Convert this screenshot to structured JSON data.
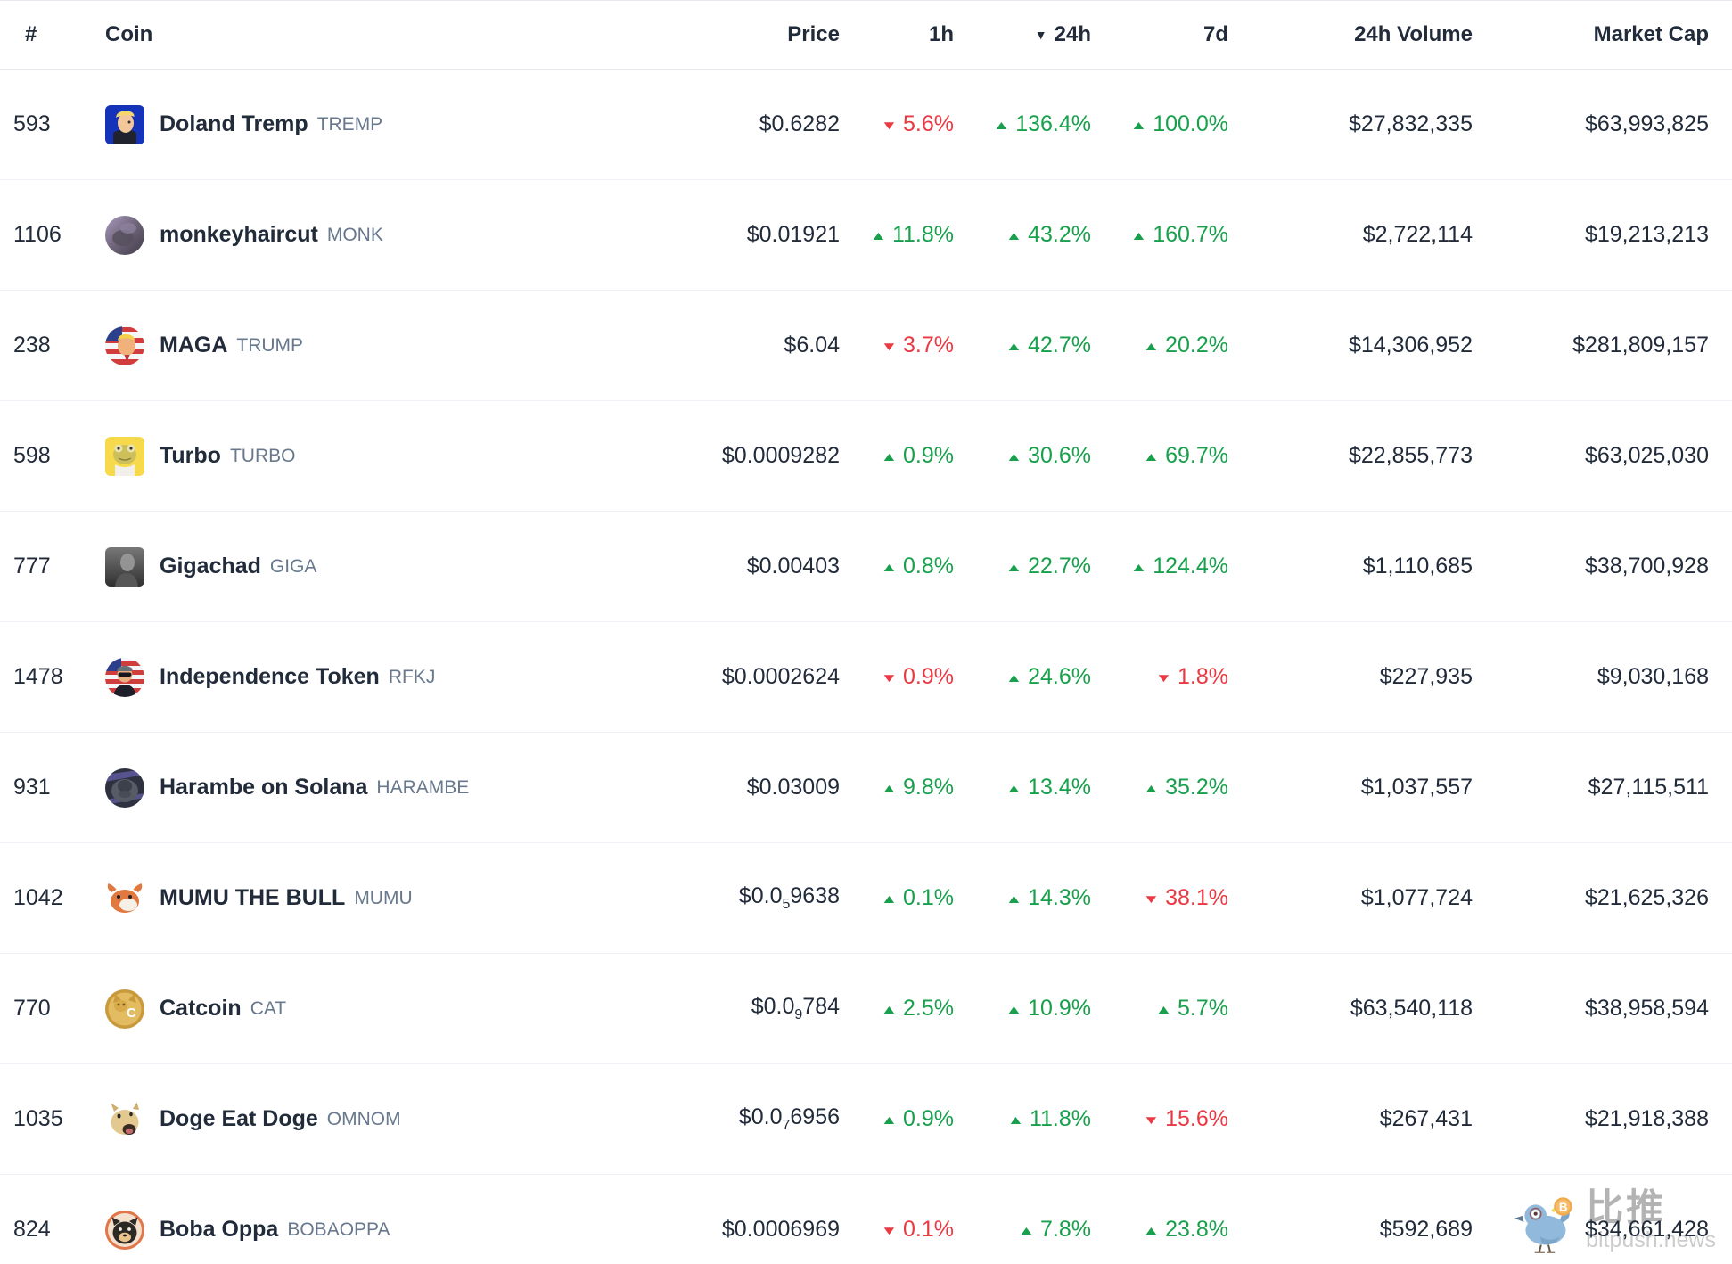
{
  "table": {
    "columns": {
      "rank": "#",
      "coin": "Coin",
      "price": "Price",
      "h1": "1h",
      "h24": "24h",
      "d7": "7d",
      "volume": "24h Volume",
      "market_cap": "Market Cap"
    },
    "sort": {
      "column": "24h",
      "direction": "desc",
      "indicator": "▼"
    }
  },
  "colors": {
    "positive": "#18a04c",
    "negative": "#ea3943",
    "text": "#212b3a",
    "ticker": "#68788d"
  },
  "coins": [
    {
      "rank": "593",
      "name": "Doland Tremp",
      "symbol": "TREMP",
      "icon": "doland-tremp-avatar",
      "price": "$0.6282",
      "change_1h": {
        "dir": "down",
        "value": "5.6%"
      },
      "change_24h": {
        "dir": "up",
        "value": "136.4%"
      },
      "change_7d": {
        "dir": "up",
        "value": "100.0%"
      },
      "volume_24h": "$27,832,335",
      "market_cap": "$63,993,825"
    },
    {
      "rank": "1106",
      "name": "monkeyhaircut",
      "symbol": "MONK",
      "icon": "monkeyhaircut-avatar",
      "price": "$0.01921",
      "change_1h": {
        "dir": "up",
        "value": "11.8%"
      },
      "change_24h": {
        "dir": "up",
        "value": "43.2%"
      },
      "change_7d": {
        "dir": "up",
        "value": "160.7%"
      },
      "volume_24h": "$2,722,114",
      "market_cap": "$19,213,213"
    },
    {
      "rank": "238",
      "name": "MAGA",
      "symbol": "TRUMP",
      "icon": "maga-avatar",
      "price": "$6.04",
      "change_1h": {
        "dir": "down",
        "value": "3.7%"
      },
      "change_24h": {
        "dir": "up",
        "value": "42.7%"
      },
      "change_7d": {
        "dir": "up",
        "value": "20.2%"
      },
      "volume_24h": "$14,306,952",
      "market_cap": "$281,809,157"
    },
    {
      "rank": "598",
      "name": "Turbo",
      "symbol": "TURBO",
      "icon": "turbo-avatar",
      "price": "$0.0009282",
      "change_1h": {
        "dir": "up",
        "value": "0.9%"
      },
      "change_24h": {
        "dir": "up",
        "value": "30.6%"
      },
      "change_7d": {
        "dir": "up",
        "value": "69.7%"
      },
      "volume_24h": "$22,855,773",
      "market_cap": "$63,025,030"
    },
    {
      "rank": "777",
      "name": "Gigachad",
      "symbol": "GIGA",
      "icon": "gigachad-avatar",
      "price": "$0.00403",
      "change_1h": {
        "dir": "up",
        "value": "0.8%"
      },
      "change_24h": {
        "dir": "up",
        "value": "22.7%"
      },
      "change_7d": {
        "dir": "up",
        "value": "124.4%"
      },
      "volume_24h": "$1,110,685",
      "market_cap": "$38,700,928"
    },
    {
      "rank": "1478",
      "name": "Independence Token",
      "symbol": "RFKJ",
      "icon": "independence-token-avatar",
      "price": "$0.0002624",
      "change_1h": {
        "dir": "down",
        "value": "0.9%"
      },
      "change_24h": {
        "dir": "up",
        "value": "24.6%"
      },
      "change_7d": {
        "dir": "down",
        "value": "1.8%"
      },
      "volume_24h": "$227,935",
      "market_cap": "$9,030,168"
    },
    {
      "rank": "931",
      "name": "Harambe on Solana",
      "symbol": "HARAMBE",
      "icon": "harambe-avatar",
      "price": "$0.03009",
      "change_1h": {
        "dir": "up",
        "value": "9.8%"
      },
      "change_24h": {
        "dir": "up",
        "value": "13.4%"
      },
      "change_7d": {
        "dir": "up",
        "value": "35.2%"
      },
      "volume_24h": "$1,037,557",
      "market_cap": "$27,115,511"
    },
    {
      "rank": "1042",
      "name": "MUMU THE BULL",
      "symbol": "MUMU",
      "icon": "mumu-bull-avatar",
      "price": "$0.0₅9638",
      "change_1h": {
        "dir": "up",
        "value": "0.1%"
      },
      "change_24h": {
        "dir": "up",
        "value": "14.3%"
      },
      "change_7d": {
        "dir": "down",
        "value": "38.1%"
      },
      "volume_24h": "$1,077,724",
      "market_cap": "$21,625,326"
    },
    {
      "rank": "770",
      "name": "Catcoin",
      "symbol": "CAT",
      "icon": "catcoin-avatar",
      "price": "$0.0₉784",
      "change_1h": {
        "dir": "up",
        "value": "2.5%"
      },
      "change_24h": {
        "dir": "up",
        "value": "10.9%"
      },
      "change_7d": {
        "dir": "up",
        "value": "5.7%"
      },
      "volume_24h": "$63,540,118",
      "market_cap": "$38,958,594"
    },
    {
      "rank": "1035",
      "name": "Doge Eat Doge",
      "symbol": "OMNOM",
      "icon": "doge-eat-doge-avatar",
      "price": "$0.0₇6956",
      "change_1h": {
        "dir": "up",
        "value": "0.9%"
      },
      "change_24h": {
        "dir": "up",
        "value": "11.8%"
      },
      "change_7d": {
        "dir": "down",
        "value": "15.6%"
      },
      "volume_24h": "$267,431",
      "market_cap": "$21,918,388"
    },
    {
      "rank": "824",
      "name": "Boba Oppa",
      "symbol": "BOBAOPPA",
      "icon": "boba-oppa-avatar",
      "price": "$0.0006969",
      "change_1h": {
        "dir": "down",
        "value": "0.1%"
      },
      "change_24h": {
        "dir": "up",
        "value": "7.8%"
      },
      "change_7d": {
        "dir": "up",
        "value": "23.8%"
      },
      "volume_24h": "$592,689",
      "market_cap": "$34,661,428"
    }
  ],
  "watermark": {
    "brand": "比推",
    "site": "bitpush.news",
    "icon": "bitpush-bird-icon"
  }
}
